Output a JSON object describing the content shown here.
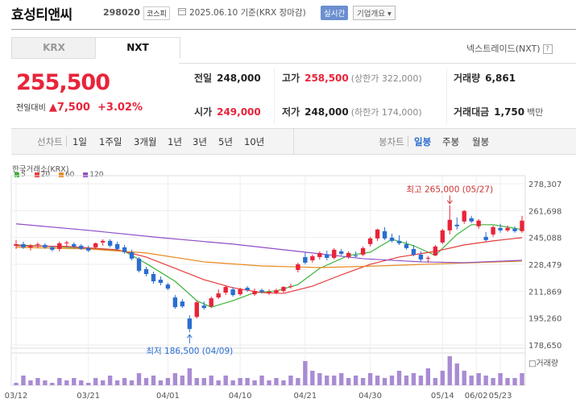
{
  "header": {
    "name": "효성티앤씨",
    "code": "298020",
    "market": "코스피",
    "date": "2025.06.10 기준(KRX 장마감)",
    "live": "실시간",
    "overview": "기업개요 ▾"
  },
  "tabs": [
    {
      "label": "KRX"
    },
    {
      "label": "NXT"
    }
  ],
  "nxt_link": "넥스트레이드(NXT)",
  "quote": {
    "price": "255,500",
    "change_label": "전일대비",
    "change_arrow": "▲",
    "change": "7,500",
    "change_pct": "+3.02%"
  },
  "stats": {
    "prev": {
      "k": "전일",
      "v": "248,000"
    },
    "high": {
      "k": "고가",
      "v": "258,500",
      "sub": "(상한가 322,000)"
    },
    "vol": {
      "k": "거래량",
      "v": "6,861"
    },
    "open": {
      "k": "시가",
      "v": "249,000"
    },
    "low": {
      "k": "저가",
      "v": "248,000",
      "sub": "(하한가 174,000)"
    },
    "amount": {
      "k": "거래대금",
      "v": "1,750",
      "unit": "백만"
    }
  },
  "periods": {
    "label": "선차트",
    "items": [
      "1일",
      "1주일",
      "3개월",
      "1년",
      "3년",
      "5년",
      "10년"
    ]
  },
  "candle_types": {
    "label": "봉차트",
    "items": [
      "일봉",
      "주봉",
      "월봉"
    ],
    "active": "일봉"
  },
  "chart_data": {
    "type": "candlestick",
    "exchange_label": "한국거래소(KRX)",
    "ma_legend": [
      {
        "name": "5",
        "color": "#3bb33b"
      },
      {
        "name": "20",
        "color": "#e63b3b"
      },
      {
        "name": "60",
        "color": "#e88a1e"
      },
      {
        "name": "120",
        "color": "#8e4fc7"
      }
    ],
    "y_ticks": [
      "278,307",
      "261,698",
      "245,088",
      "228,479",
      "211,869",
      "195,260",
      "178,650"
    ],
    "ylim": [
      178650,
      278307
    ],
    "x_ticks": [
      "03/12",
      "03/21",
      "04/01",
      "04/10",
      "04/21",
      "04/30",
      "05/14",
      "05/23",
      "06/02"
    ],
    "annotations": {
      "max": "최고 265,000 (05/27)",
      "min": "최저 186,500 (04/09)"
    },
    "volume_label": "거래량",
    "candles": [
      [
        240000,
        243500,
        238000,
        241000
      ],
      [
        241000,
        242500,
        238000,
        239000
      ],
      [
        239000,
        241000,
        237000,
        240000
      ],
      [
        240500,
        242000,
        238500,
        241000
      ],
      [
        240500,
        241500,
        238000,
        239000
      ],
      [
        239000,
        240000,
        236500,
        237500
      ],
      [
        238000,
        242500,
        236500,
        241500
      ],
      [
        241500,
        243000,
        239000,
        242000
      ],
      [
        241000,
        242000,
        238500,
        239500
      ],
      [
        240000,
        241000,
        237500,
        238000
      ],
      [
        238500,
        240000,
        236000,
        237000
      ],
      [
        239000,
        242000,
        238000,
        241500
      ],
      [
        242000,
        244000,
        240000,
        243000
      ],
      [
        243000,
        244000,
        239000,
        240000
      ],
      [
        241000,
        242500,
        237000,
        238000
      ],
      [
        239000,
        240500,
        235000,
        236000
      ],
      [
        236000,
        237500,
        231000,
        232000
      ],
      [
        232000,
        233000,
        223500,
        224500
      ],
      [
        225500,
        227000,
        221000,
        222500
      ],
      [
        222500,
        224000,
        216500,
        218000
      ],
      [
        219000,
        221000,
        215500,
        217000
      ],
      [
        216000,
        217000,
        212500,
        213500
      ],
      [
        208000,
        209500,
        201000,
        202000
      ],
      [
        205500,
        207000,
        201500,
        202500
      ],
      [
        195000,
        197000,
        186500,
        188500
      ],
      [
        196000,
        206000,
        195000,
        205000
      ],
      [
        203000,
        205500,
        200500,
        201500
      ],
      [
        202500,
        208500,
        201500,
        207500
      ],
      [
        208000,
        213000,
        207000,
        210500
      ],
      [
        211000,
        215500,
        209500,
        214500
      ],
      [
        213000,
        214500,
        208500,
        209500
      ],
      [
        210000,
        214000,
        209000,
        213000
      ],
      [
        214000,
        215000,
        211500,
        212500
      ],
      [
        210000,
        213500,
        209000,
        212000
      ],
      [
        212500,
        213500,
        210500,
        211500
      ],
      [
        210500,
        213000,
        209500,
        211500
      ],
      [
        211000,
        213500,
        210000,
        212500
      ],
      [
        212000,
        215000,
        211000,
        214500
      ],
      [
        215000,
        216500,
        213500,
        215000
      ],
      [
        225000,
        229500,
        223500,
        228500
      ],
      [
        233000,
        236000,
        228500,
        229500
      ],
      [
        231000,
        234500,
        229500,
        233500
      ],
      [
        233000,
        236500,
        231500,
        235500
      ],
      [
        234500,
        237000,
        231000,
        232500
      ],
      [
        232500,
        238500,
        231500,
        237500
      ],
      [
        236500,
        238000,
        234000,
        235000
      ],
      [
        233000,
        236500,
        232000,
        235500
      ],
      [
        234000,
        236500,
        232500,
        233500
      ],
      [
        234500,
        239500,
        233500,
        238500
      ],
      [
        241000,
        245500,
        239500,
        244500
      ],
      [
        244500,
        250500,
        243000,
        250000
      ],
      [
        249000,
        251500,
        243500,
        244500
      ],
      [
        245000,
        247500,
        242000,
        243000
      ],
      [
        243000,
        246500,
        240500,
        241500
      ],
      [
        241000,
        243000,
        237500,
        238500
      ],
      [
        238000,
        240500,
        233500,
        234500
      ],
      [
        234500,
        236500,
        230000,
        231500
      ],
      [
        232000,
        233500,
        229500,
        232500
      ],
      [
        234000,
        240500,
        233500,
        239500
      ],
      [
        242000,
        250500,
        241000,
        249500
      ],
      [
        249500,
        265000,
        247000,
        256000
      ],
      [
        253000,
        257500,
        250000,
        252000
      ],
      [
        255000,
        262000,
        253500,
        261500
      ],
      [
        257000,
        258500,
        254000,
        255000
      ],
      [
        252000,
        256500,
        250500,
        255500
      ],
      [
        245500,
        248500,
        242500,
        243500
      ],
      [
        247000,
        252500,
        245500,
        251500
      ],
      [
        251000,
        253500,
        248000,
        249500
      ],
      [
        249500,
        252500,
        248500,
        251000
      ],
      [
        250500,
        252000,
        248000,
        249000
      ],
      [
        249000,
        258500,
        248000,
        255500
      ]
    ],
    "ma": {
      "5": [
        [
          0,
          240500
        ],
        [
          10,
          238500
        ],
        [
          15,
          236500
        ],
        [
          18,
          229000
        ],
        [
          22,
          218000
        ],
        [
          25,
          206000
        ],
        [
          27,
          202000
        ],
        [
          30,
          206000
        ],
        [
          33,
          211000
        ],
        [
          36,
          212000
        ],
        [
          39,
          216000
        ],
        [
          42,
          226000
        ],
        [
          46,
          234000
        ],
        [
          49,
          236000
        ],
        [
          52,
          244000
        ],
        [
          55,
          240000
        ],
        [
          58,
          234000
        ],
        [
          61,
          247000
        ],
        [
          63,
          253000
        ],
        [
          66,
          253000
        ],
        [
          70,
          250000
        ]
      ],
      "20": [
        [
          0,
          240000
        ],
        [
          7,
          239500
        ],
        [
          14,
          237500
        ],
        [
          18,
          233000
        ],
        [
          22,
          226000
        ],
        [
          26,
          219000
        ],
        [
          30,
          214000
        ],
        [
          34,
          211000
        ],
        [
          37,
          210500
        ],
        [
          41,
          215000
        ],
        [
          45,
          222000
        ],
        [
          49,
          228500
        ],
        [
          53,
          233000
        ],
        [
          58,
          236500
        ],
        [
          62,
          240500
        ],
        [
          66,
          243000
        ],
        [
          70,
          245000
        ]
      ],
      "60": [
        [
          0,
          239000
        ],
        [
          10,
          238000
        ],
        [
          18,
          235500
        ],
        [
          26,
          230000
        ],
        [
          34,
          227500
        ],
        [
          42,
          226500
        ],
        [
          50,
          227500
        ],
        [
          60,
          229000
        ],
        [
          70,
          230500
        ]
      ],
      "120": [
        [
          0,
          253500
        ],
        [
          10,
          249500
        ],
        [
          20,
          245000
        ],
        [
          30,
          241000
        ],
        [
          40,
          236000
        ],
        [
          48,
          232000
        ],
        [
          56,
          230000
        ],
        [
          62,
          229500
        ],
        [
          70,
          231000
        ]
      ]
    },
    "volumes": [
      1,
      4,
      2,
      3,
      2,
      1,
      3,
      2,
      3,
      2,
      1,
      3,
      2,
      4,
      2,
      3,
      2,
      5,
      3,
      4,
      2,
      3,
      5,
      4,
      7,
      3,
      3,
      4,
      2,
      4,
      2,
      3,
      3,
      2,
      4,
      2,
      3,
      2,
      4,
      3,
      10,
      6,
      5,
      4,
      4,
      5,
      3,
      4,
      3,
      5,
      4,
      3,
      4,
      6,
      4,
      5,
      4,
      7,
      3,
      6,
      12,
      9,
      6,
      4,
      5,
      4,
      3,
      5,
      3,
      3,
      5
    ]
  }
}
